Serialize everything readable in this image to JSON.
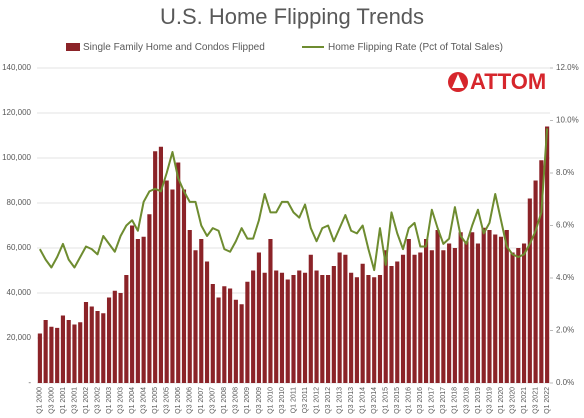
{
  "chart_data": {
    "type": "bar_line",
    "title": "U.S. Home Flipping Trends",
    "logo": "ATTOM",
    "categories": [
      "Q1 2000",
      null,
      "Q3 2000",
      null,
      "Q1 2001",
      null,
      "Q3 2001",
      null,
      "Q1 2002",
      null,
      "Q3 2002",
      null,
      "Q1 2003",
      null,
      "Q3 2003",
      null,
      "Q1 2004",
      null,
      "Q3 2004",
      null,
      "Q1 2005",
      null,
      "Q3 2005",
      null,
      "Q1 2006",
      null,
      "Q3 2006",
      null,
      "Q1 2007",
      null,
      "Q3 2007",
      null,
      "Q1 2008",
      null,
      "Q3 2008",
      null,
      "Q1 2009",
      null,
      "Q3 2009",
      null,
      "Q1 2010",
      null,
      "Q3 2010",
      null,
      "Q1 2011",
      null,
      "Q3 2011",
      null,
      "Q1 2012",
      null,
      "Q3 2012",
      null,
      "Q1 2013",
      null,
      "Q3 2013",
      null,
      "Q1 2014",
      null,
      "Q3 2014",
      null,
      "Q1 2015",
      null,
      "Q3 2015",
      null,
      "Q1 2016",
      null,
      "Q3 2016",
      null,
      "Q1 2017",
      null,
      "Q3 2017",
      null,
      "Q1 2018",
      null,
      "Q3 2018",
      null,
      "Q1 2019",
      null,
      "Q3 2019",
      null,
      "Q1 2020",
      null,
      "Q3 2020",
      null,
      "Q1 2021",
      null,
      "Q3 2021",
      null,
      "Q1 2022"
    ],
    "series": [
      {
        "name": "Single Family Home and Condos Flipped",
        "color": "#8b2328",
        "kind": "bar",
        "values": [
          22000,
          28000,
          25000,
          24500,
          30000,
          28000,
          26000,
          27000,
          36000,
          34000,
          32000,
          31000,
          38000,
          41000,
          40000,
          48000,
          70000,
          64000,
          65000,
          75000,
          103000,
          105000,
          90000,
          86000,
          98000,
          86000,
          68000,
          59000,
          64000,
          54000,
          44000,
          38000,
          43000,
          42000,
          37000,
          35000,
          45000,
          50000,
          58000,
          49000,
          64000,
          50000,
          49000,
          46000,
          48000,
          50000,
          49000,
          57000,
          50000,
          48000,
          48000,
          52000,
          58000,
          57000,
          49000,
          47000,
          53000,
          48000,
          47000,
          48000,
          59000,
          52000,
          54000,
          57000,
          64000,
          57000,
          58000,
          64000,
          59000,
          68000,
          59000,
          62000,
          60000,
          67000,
          63000,
          67000,
          62000,
          69000,
          68000,
          66000,
          65000,
          68000,
          58000,
          60000,
          62000,
          82000,
          90000,
          99000,
          114000
        ]
      },
      {
        "name": "Home Flipping Rate (Pct of Total Sales)",
        "color": "#6e8c30",
        "kind": "line",
        "axis": "y2",
        "values": [
          5.1,
          4.7,
          4.4,
          4.8,
          5.3,
          4.7,
          4.4,
          4.8,
          5.2,
          5.1,
          4.9,
          5.6,
          5.3,
          5.0,
          5.6,
          6.0,
          6.2,
          5.8,
          6.9,
          7.3,
          7.4,
          7.3,
          8.0,
          8.8,
          7.8,
          7.3,
          6.9,
          6.9,
          6.0,
          5.6,
          5.9,
          5.8,
          5.1,
          5.0,
          5.4,
          5.9,
          5.5,
          5.5,
          6.2,
          7.2,
          6.5,
          6.5,
          6.9,
          6.9,
          6.5,
          6.3,
          6.8,
          5.9,
          5.4,
          5.9,
          6.0,
          5.4,
          5.9,
          6.4,
          5.8,
          5.7,
          6.0,
          5.1,
          4.3,
          5.9,
          4.5,
          6.5,
          5.7,
          5.1,
          5.9,
          6.1,
          5.2,
          5.2,
          6.6,
          5.9,
          5.3,
          5.5,
          6.7,
          5.6,
          5.3,
          6.0,
          6.6,
          5.7,
          6.1,
          7.2,
          6.2,
          5.2,
          4.9,
          4.8,
          4.9,
          5.3,
          5.8,
          6.5,
          9.7
        ]
      }
    ],
    "ylim": [
      0,
      140000
    ],
    "yticks": [
      {
        "value": 0,
        "label": "-"
      },
      {
        "value": 20000,
        "label": "20,000"
      },
      {
        "value": 40000,
        "label": "40,000"
      },
      {
        "value": 60000,
        "label": "60,000"
      },
      {
        "value": 80000,
        "label": "80,000"
      },
      {
        "value": 100000,
        "label": "100,000"
      },
      {
        "value": 120000,
        "label": "120,000"
      },
      {
        "value": 140000,
        "label": "140,000"
      }
    ],
    "y2lim": [
      0,
      12
    ],
    "y2ticks": [
      {
        "value": 0,
        "label": "0.0%"
      },
      {
        "value": 2,
        "label": "2.0%"
      },
      {
        "value": 4,
        "label": "4.0%"
      },
      {
        "value": 6,
        "label": "6.0%"
      },
      {
        "value": 8,
        "label": "8.0%"
      },
      {
        "value": 10,
        "label": "10.0%"
      },
      {
        "value": 12,
        "label": "12.0%"
      }
    ],
    "grid": true
  }
}
